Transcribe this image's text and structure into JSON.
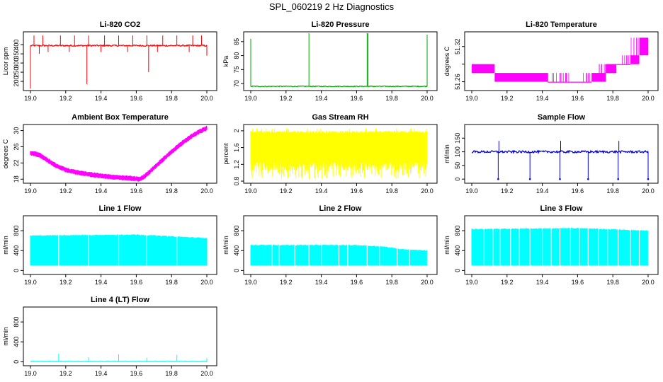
{
  "figure": {
    "title": "SPL_060219  2 Hz Diagnostics"
  },
  "chart_data": [
    {
      "type": "line",
      "title": "Li-820 CO2",
      "xlabel": "",
      "ylabel": "Licor ppm",
      "color": "#ff0000",
      "xlim": [
        19.0,
        20.0
      ],
      "ylim": [
        150,
        470
      ],
      "xticks": [
        "19.0",
        "19.2",
        "19.4",
        "19.6",
        "19.8",
        "20.0"
      ],
      "yticks": [
        200,
        250,
        300,
        350,
        400
      ],
      "series": [
        {
          "name": "CO2",
          "base": 395,
          "noise": 4,
          "spikes": [
            [
              19.0,
              160
            ],
            [
              19.02,
              450
            ],
            [
              19.05,
              350
            ],
            [
              19.07,
              450
            ],
            [
              19.1,
              360
            ],
            [
              19.17,
              450
            ],
            [
              19.22,
              360
            ],
            [
              19.25,
              450
            ],
            [
              19.32,
              185
            ],
            [
              19.33,
              450
            ],
            [
              19.4,
              360
            ],
            [
              19.42,
              450
            ],
            [
              19.5,
              450
            ],
            [
              19.55,
              360
            ],
            [
              19.58,
              450
            ],
            [
              19.66,
              450
            ],
            [
              19.67,
              250
            ],
            [
              19.72,
              360
            ],
            [
              19.75,
              450
            ],
            [
              19.83,
              450
            ],
            [
              19.9,
              360
            ],
            [
              19.92,
              450
            ],
            [
              19.97,
              450
            ],
            [
              20.0,
              340
            ]
          ]
        }
      ]
    },
    {
      "type": "line",
      "title": "Li-820 Pressure",
      "xlabel": "",
      "ylabel": "kPa",
      "color": "#00aa00",
      "xlim": [
        19.0,
        20.0
      ],
      "ylim": [
        67.5,
        88.5
      ],
      "xticks": [
        "19.0",
        "19.2",
        "19.4",
        "19.6",
        "19.8",
        "20.0"
      ],
      "yticks": [
        70,
        75,
        80,
        85
      ],
      "series": [
        {
          "name": "Pressure",
          "base": 69,
          "noise": 0.15,
          "spikes": [
            [
              19.0,
              86
            ],
            [
              19.33,
              88
            ],
            [
              19.66,
              88
            ],
            [
              19.665,
              88
            ],
            [
              20.0,
              87.5
            ]
          ]
        }
      ]
    },
    {
      "type": "step",
      "title": "Li-820 Temperature",
      "xlabel": "",
      "ylabel": "degrees C",
      "color": "#ff00ff",
      "xlim": [
        19.0,
        20.0
      ],
      "ylim": [
        51.245,
        51.345
      ],
      "xticks": [
        "19.0",
        "19.2",
        "19.4",
        "19.6",
        "19.8",
        "20.0"
      ],
      "yticks": [
        51.26,
        51.29,
        51.32
      ],
      "ytick_labels": [
        "51.26",
        "",
        "51.32"
      ],
      "series": [
        {
          "name": "Temperature",
          "bands": [
            [
              19.0,
              19.13,
              51.275,
              51.29
            ],
            [
              19.13,
              19.43,
              51.26,
              51.275
            ],
            [
              19.43,
              19.68,
              51.26,
              51.26
            ],
            [
              19.68,
              19.76,
              51.26,
              51.275
            ],
            [
              19.76,
              19.82,
              51.275,
              51.29
            ],
            [
              19.82,
              19.9,
              51.29,
              51.29
            ],
            [
              19.9,
              19.95,
              51.29,
              51.305
            ],
            [
              19.95,
              20.0,
              51.305,
              51.335
            ]
          ]
        }
      ]
    },
    {
      "type": "line",
      "title": "Ambient Box Temperature",
      "xlabel": "",
      "ylabel": "degrees C",
      "color": "#ff00ff",
      "xlim": [
        19.0,
        20.0
      ],
      "ylim": [
        17.0,
        31.5
      ],
      "xticks": [
        "19.0",
        "19.2",
        "19.4",
        "19.6",
        "19.8",
        "20.0"
      ],
      "yticks": [
        18,
        22,
        26,
        30
      ],
      "series": [
        {
          "name": "Box T",
          "x": [
            19.0,
            19.05,
            19.1,
            19.15,
            19.2,
            19.25,
            19.3,
            19.35,
            19.4,
            19.45,
            19.5,
            19.55,
            19.6,
            19.62,
            19.65,
            19.7,
            19.75,
            19.8,
            19.85,
            19.9,
            19.95,
            20.0
          ],
          "y": [
            24.5,
            24.0,
            22.6,
            21.2,
            20.3,
            19.8,
            19.4,
            19.1,
            18.8,
            18.6,
            18.4,
            18.3,
            18.1,
            18.0,
            18.8,
            20.8,
            22.8,
            24.8,
            26.6,
            28.2,
            29.6,
            30.6
          ],
          "noise": 0.35
        }
      ]
    },
    {
      "type": "line",
      "title": "Gas Stream RH",
      "xlabel": "",
      "ylabel": "percent",
      "color": "#ffff00",
      "xlim": [
        19.0,
        20.0
      ],
      "ylim": [
        0.75,
        2.15
      ],
      "xticks": [
        "19.0",
        "19.2",
        "19.4",
        "19.6",
        "19.8",
        "20.0"
      ],
      "yticks": [
        0.8,
        1.2,
        1.6,
        2.0
      ],
      "series": [
        {
          "name": "RH",
          "band": [
            1.05,
            2.0
          ],
          "min": 0.85,
          "max": 2.05
        }
      ]
    },
    {
      "type": "line",
      "title": "Sample Flow",
      "xlabel": "",
      "ylabel": "ml/min",
      "color": "#0000dd",
      "xlim": [
        19.0,
        20.0
      ],
      "ylim": [
        -15,
        200
      ],
      "xticks": [
        "19.0",
        "19.2",
        "19.4",
        "19.6",
        "19.8",
        "20.0"
      ],
      "yticks": [
        0,
        50,
        100,
        150
      ],
      "series": [
        {
          "name": "Sample",
          "base": 100,
          "noise": 4,
          "dips": [
            19.15,
            19.33,
            19.5,
            19.66,
            19.83,
            20.0
          ],
          "dip_to": 0,
          "peaks": [
            19.15,
            19.5,
            19.83
          ],
          "peak_to": 140
        }
      ]
    },
    {
      "type": "line",
      "title": "Line 1 Flow",
      "xlabel": "",
      "ylabel": "ml/min",
      "color": "#00ffff",
      "xlim": [
        19.0,
        20.0
      ],
      "ylim": [
        -80,
        1100
      ],
      "xticks": [
        "19.0",
        "19.2",
        "19.4",
        "19.6",
        "19.8",
        "20.0"
      ],
      "yticks": [
        0,
        400,
        800
      ],
      "series": [
        {
          "name": "Line 1",
          "band_top": [
            [
              19.0,
              700
            ],
            [
              19.6,
              720
            ],
            [
              20.0,
              650
            ]
          ],
          "band_bottom": 100,
          "gaps": [
            19.16,
            19.33,
            19.5,
            19.66,
            19.83
          ]
        }
      ]
    },
    {
      "type": "line",
      "title": "Line 2 Flow",
      "xlabel": "",
      "ylabel": "ml/min",
      "color": "#00ffff",
      "xlim": [
        19.0,
        20.0
      ],
      "ylim": [
        -80,
        1100
      ],
      "xticks": [
        "19.0",
        "19.2",
        "19.4",
        "19.6",
        "19.8",
        "20.0"
      ],
      "yticks": [
        0,
        400,
        800
      ],
      "series": [
        {
          "name": "Line 2",
          "band_top": [
            [
              19.0,
              510
            ],
            [
              19.6,
              510
            ],
            [
              19.75,
              480
            ],
            [
              19.85,
              430
            ],
            [
              20.0,
              400
            ]
          ],
          "band_bottom": 100,
          "gaps": [
            19.16,
            19.33,
            19.5,
            19.66,
            19.83,
            19.12,
            19.25,
            19.4,
            19.55,
            19.73,
            19.9
          ]
        }
      ]
    },
    {
      "type": "line",
      "title": "Line 3 Flow",
      "xlabel": "",
      "ylabel": "ml/min",
      "color": "#00ffff",
      "xlim": [
        19.0,
        20.0
      ],
      "ylim": [
        -80,
        1100
      ],
      "xticks": [
        "19.0",
        "19.2",
        "19.4",
        "19.6",
        "19.8",
        "20.0"
      ],
      "yticks": [
        0,
        400,
        800
      ],
      "series": [
        {
          "name": "Line 3",
          "band_top": [
            [
              19.0,
              830
            ],
            [
              19.6,
              850
            ],
            [
              20.0,
              800
            ]
          ],
          "band_bottom": 100,
          "gaps": [
            19.16,
            19.33,
            19.5,
            19.66,
            19.83,
            19.07,
            19.12,
            19.22,
            19.27,
            19.4,
            19.45,
            19.56,
            19.61,
            19.72,
            19.77,
            19.9,
            19.95
          ]
        }
      ]
    },
    {
      "type": "line",
      "title": "Line 4 (LT) Flow",
      "xlabel": "",
      "ylabel": "ml/min",
      "color": "#00ffff",
      "xlim": [
        19.0,
        20.0
      ],
      "ylim": [
        -80,
        1100
      ],
      "xticks": [
        "19.0",
        "19.2",
        "19.4",
        "19.6",
        "19.8",
        "20.0"
      ],
      "yticks": [
        0,
        400,
        800
      ],
      "series": [
        {
          "name": "Line 4",
          "base": 5,
          "noise": 3,
          "spikes": [
            [
              19.16,
              160
            ],
            [
              19.33,
              90
            ],
            [
              19.5,
              150
            ],
            [
              19.66,
              80
            ],
            [
              19.83,
              140
            ],
            [
              20.0,
              70
            ]
          ]
        }
      ]
    }
  ]
}
